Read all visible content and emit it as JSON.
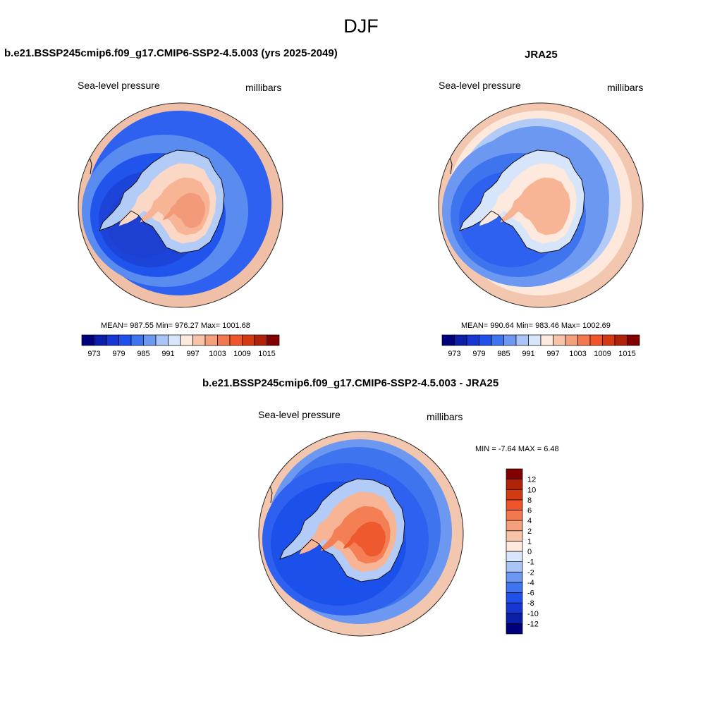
{
  "figure": {
    "title": "DJF"
  },
  "panels": [
    {
      "title": "b.e21.BSSP245cmip6.f09_g17.CMIP6-SSP2-4.5.003 (yrs 2025-2049)",
      "left_label": "Sea-level pressure",
      "right_label": "millibars",
      "stats": "MEAN= 987.55  Min= 976.27  Max= 1001.68",
      "outer_colors": [
        "#efbfa8",
        "#2e61f0"
      ],
      "mid_colors": [
        "#5a8cf0",
        "#2054ec",
        "#1c44d8",
        "#1d3fd2"
      ],
      "inner_colors": [
        "#b3cbf7",
        "#fbd8c6",
        "#f7b595",
        "#f29a7a"
      ]
    },
    {
      "title": "JRA25",
      "left_label": "Sea-level pressure",
      "right_label": "millibars",
      "stats": "MEAN= 990.64  Min= 983.46  Max= 1002.69",
      "outer_colors": [
        "#f3c7af",
        "#fde8db",
        "#b3cbf7",
        "#6c98f2"
      ],
      "mid_colors": [
        "#6c98f2",
        "#3f74ef",
        "#2e61f0"
      ],
      "inner_colors": [
        "#d7e5fb",
        "#fde9dd",
        "#f7b595"
      ]
    },
    {
      "title": "b.e21.BSSP245cmip6.f09_g17.CMIP6-SSP2-4.5.003 - JRA25",
      "left_label": "Sea-level pressure",
      "right_label": "millibars",
      "stats": "MIN =  -7.64 MAX =   6.48",
      "outer_colors": [
        "#f3c7af",
        "#6c98f2",
        "#3f74ef"
      ],
      "mid_colors": [
        "#2e61f0",
        "#1c50ea"
      ],
      "inner_colors": [
        "#b3cbf7",
        "#f7b595",
        "#f57f55",
        "#ee5a2e"
      ]
    }
  ],
  "abs_colorbar": {
    "colors": [
      "#00007f",
      "#0a1ea8",
      "#1736d2",
      "#2050ec",
      "#3f74ef",
      "#6c98f2",
      "#a9c4f6",
      "#d8e6fb",
      "#fde9dd",
      "#f7c3a9",
      "#f4a07c",
      "#f2784f",
      "#ef5528",
      "#d43a12",
      "#b0230a",
      "#830000"
    ],
    "tick_labels": [
      "973",
      "979",
      "985",
      "991",
      "997",
      "1003",
      "1009",
      "1015"
    ]
  },
  "diff_colorbar": {
    "colors": [
      "#00007f",
      "#0a1ea8",
      "#1736d2",
      "#2050ec",
      "#3f74ef",
      "#6c98f2",
      "#a9c4f6",
      "#d8e6fb",
      "#fde9dd",
      "#f7c3a9",
      "#f4a07c",
      "#f2784f",
      "#ef5528",
      "#d43a12",
      "#b0230a",
      "#830000"
    ],
    "tick_labels": [
      "-12",
      "-10",
      "-8",
      "-6",
      "-4",
      "-2",
      "-1",
      "0",
      "1",
      "2",
      "4",
      "6",
      "8",
      "10",
      "12"
    ]
  }
}
